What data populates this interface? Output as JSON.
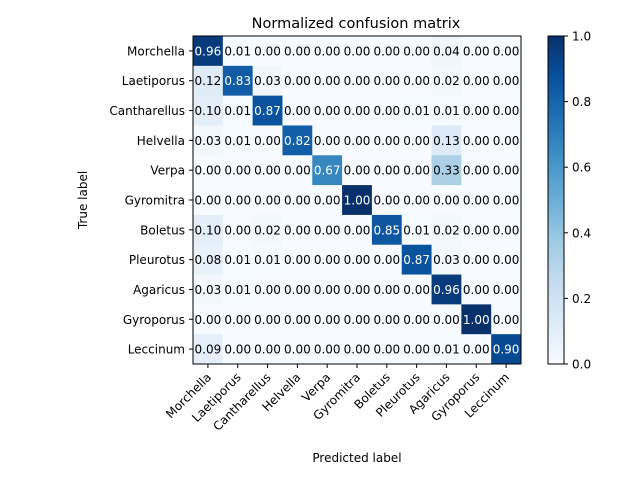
{
  "chart_data": {
    "type": "heatmap",
    "title": "Normalized confusion matrix",
    "xlabel": "Predicted label",
    "ylabel": "True label",
    "categories": [
      "Morchella",
      "Laetiporus",
      "Cantharellus",
      "Helvella",
      "Verpa",
      "Gyromitra",
      "Boletus",
      "Pleurotus",
      "Agaricus",
      "Gyroporus",
      "Leccinum"
    ],
    "values": [
      [
        0.96,
        0.01,
        0.0,
        0.0,
        0.0,
        0.0,
        0.0,
        0.0,
        0.04,
        0.0,
        0.0
      ],
      [
        0.12,
        0.83,
        0.03,
        0.0,
        0.0,
        0.0,
        0.0,
        0.0,
        0.02,
        0.0,
        0.0
      ],
      [
        0.1,
        0.01,
        0.87,
        0.0,
        0.0,
        0.0,
        0.0,
        0.01,
        0.01,
        0.0,
        0.0
      ],
      [
        0.03,
        0.01,
        0.0,
        0.82,
        0.0,
        0.0,
        0.0,
        0.0,
        0.13,
        0.0,
        0.0
      ],
      [
        0.0,
        0.0,
        0.0,
        0.0,
        0.67,
        0.0,
        0.0,
        0.0,
        0.33,
        0.0,
        0.0
      ],
      [
        0.0,
        0.0,
        0.0,
        0.0,
        0.0,
        1.0,
        0.0,
        0.0,
        0.0,
        0.0,
        0.0
      ],
      [
        0.1,
        0.0,
        0.02,
        0.0,
        0.0,
        0.0,
        0.85,
        0.01,
        0.02,
        0.0,
        0.0
      ],
      [
        0.08,
        0.01,
        0.01,
        0.0,
        0.0,
        0.0,
        0.0,
        0.87,
        0.03,
        0.0,
        0.0
      ],
      [
        0.03,
        0.01,
        0.0,
        0.0,
        0.0,
        0.0,
        0.0,
        0.0,
        0.96,
        0.0,
        0.0
      ],
      [
        0.0,
        0.0,
        0.0,
        0.0,
        0.0,
        0.0,
        0.0,
        0.0,
        0.0,
        1.0,
        0.0
      ],
      [
        0.09,
        0.0,
        0.0,
        0.0,
        0.0,
        0.0,
        0.0,
        0.0,
        0.01,
        0.0,
        0.9
      ]
    ],
    "colormap": "Blues",
    "vmin": 0.0,
    "vmax": 1.0,
    "colorbar_ticks": [
      "0.0",
      "0.2",
      "0.4",
      "0.6",
      "0.8",
      "1.0"
    ],
    "value_format": "2 decimals",
    "text_color_dark_cells": "#ffffff",
    "text_color_light_cells": "#000000"
  }
}
